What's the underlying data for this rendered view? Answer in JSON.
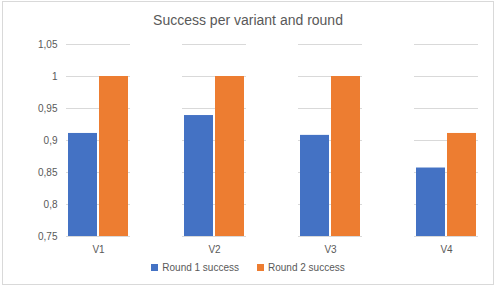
{
  "chart_data": {
    "type": "bar",
    "title": "Success per variant and round",
    "categories": [
      "V1",
      "V2",
      "V3",
      "V4"
    ],
    "series": [
      {
        "name": "Round 1 success",
        "color": "#4472c4",
        "values": [
          0.911,
          0.939,
          0.908,
          0.857
        ]
      },
      {
        "name": "Round 2 success",
        "color": "#ed7d31",
        "values": [
          1,
          1,
          1,
          0.911
        ]
      }
    ],
    "ylim": [
      0.75,
      1.05
    ],
    "yticks": [
      {
        "value": 0.75,
        "label": "0,75"
      },
      {
        "value": 0.8,
        "label": "0,8"
      },
      {
        "value": 0.85,
        "label": "0,85"
      },
      {
        "value": 0.9,
        "label": "0,9"
      },
      {
        "value": 0.95,
        "label": "0,95"
      },
      1,
      {
        "value": 1.05,
        "label": "1,05"
      }
    ],
    "grid": true,
    "legend": "bottom"
  }
}
